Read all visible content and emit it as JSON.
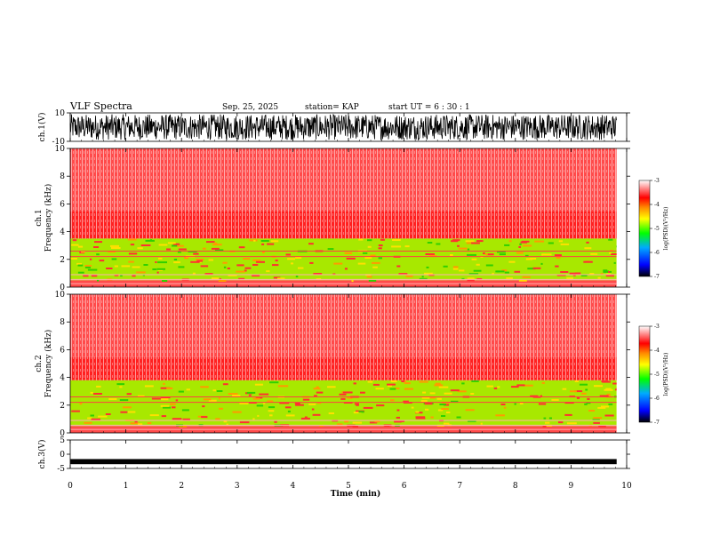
{
  "header": {
    "title": "VLF Spectra",
    "date": "Sep. 25, 2025",
    "station": "station= KAP",
    "start": "start  UT  =   6  : 30 : 1"
  },
  "chart_data": [
    {
      "type": "line",
      "name": "ch1-waveform",
      "ylabel": "ch.1(V)",
      "ylim": [
        -10,
        10
      ],
      "yticks": [
        -10,
        10
      ],
      "ytick_labels": [
        "-10",
        "10"
      ],
      "xlim": [
        0,
        10
      ],
      "data_xlim": [
        0,
        9.82
      ],
      "description_values": {
        "typical_min": -9,
        "typical_max": 9
      }
    },
    {
      "type": "heatmap",
      "name": "ch1-spectrogram",
      "ylabel": "ch.1",
      "ylabel2": "Frequency (kHz)",
      "ylim": [
        0,
        10
      ],
      "yticks": [
        0,
        2,
        4,
        6,
        8,
        10
      ],
      "ytick_labels": [
        "0",
        "2",
        "4",
        "6",
        "8",
        "10"
      ],
      "xlim": [
        0,
        10
      ],
      "data_xlim": [
        0,
        9.82
      ],
      "colorbar": {
        "label": "log(PSD)(V²/Hz)",
        "range": [
          -7,
          -3
        ],
        "ticks": [
          -7,
          -6,
          -5,
          -4,
          -3
        ],
        "tick_labels": [
          "-7",
          "-6",
          "-5",
          "-4",
          "-3"
        ]
      },
      "bands": [
        {
          "from": 0,
          "to": 0.5,
          "level": -3.6
        },
        {
          "from": 0.5,
          "to": 3.5,
          "level": -4.9
        },
        {
          "from": 3.5,
          "to": 5.5,
          "level": -3.9
        },
        {
          "from": 5.5,
          "to": 10,
          "level": -3.3
        }
      ]
    },
    {
      "type": "heatmap",
      "name": "ch2-spectrogram",
      "ylabel": "ch.2",
      "ylabel2": "Frequency (kHz)",
      "ylim": [
        0,
        10
      ],
      "yticks": [
        0,
        2,
        4,
        6,
        8,
        10
      ],
      "ytick_labels": [
        "0",
        "2",
        "4",
        "6",
        "8",
        "10"
      ],
      "xlim": [
        0,
        10
      ],
      "data_xlim": [
        0,
        9.82
      ],
      "colorbar": {
        "label": "log(PSD)(V²/Hz)",
        "range": [
          -7,
          -3
        ],
        "ticks": [
          -7,
          -6,
          -5,
          -4,
          -3
        ],
        "tick_labels": [
          "-7",
          "-6",
          "-5",
          "-4",
          "-3"
        ]
      },
      "bands": [
        {
          "from": 0,
          "to": 0.5,
          "level": -3.6
        },
        {
          "from": 0.5,
          "to": 3.8,
          "level": -4.8
        },
        {
          "from": 3.8,
          "to": 5.5,
          "level": -3.9
        },
        {
          "from": 5.5,
          "to": 10,
          "level": -3.3
        }
      ]
    },
    {
      "type": "line",
      "name": "ch3-waveform",
      "ylabel": "ch.3(V)",
      "ylim": [
        -5,
        5
      ],
      "yticks": [
        -5,
        0,
        5
      ],
      "ytick_labels": [
        "-5",
        "0",
        "5"
      ],
      "xlim": [
        0,
        10
      ],
      "data_xlim": [
        0,
        9.82
      ],
      "xticks": [
        0,
        1,
        2,
        3,
        4,
        5,
        6,
        7,
        8,
        9,
        10
      ],
      "xtick_labels": [
        "0",
        "1",
        "2",
        "3",
        "4",
        "5",
        "6",
        "7",
        "8",
        "9",
        "10"
      ],
      "xlabel": "Time (min)",
      "description_values": {
        "center": -2.6,
        "half_width": 0.9
      }
    }
  ]
}
